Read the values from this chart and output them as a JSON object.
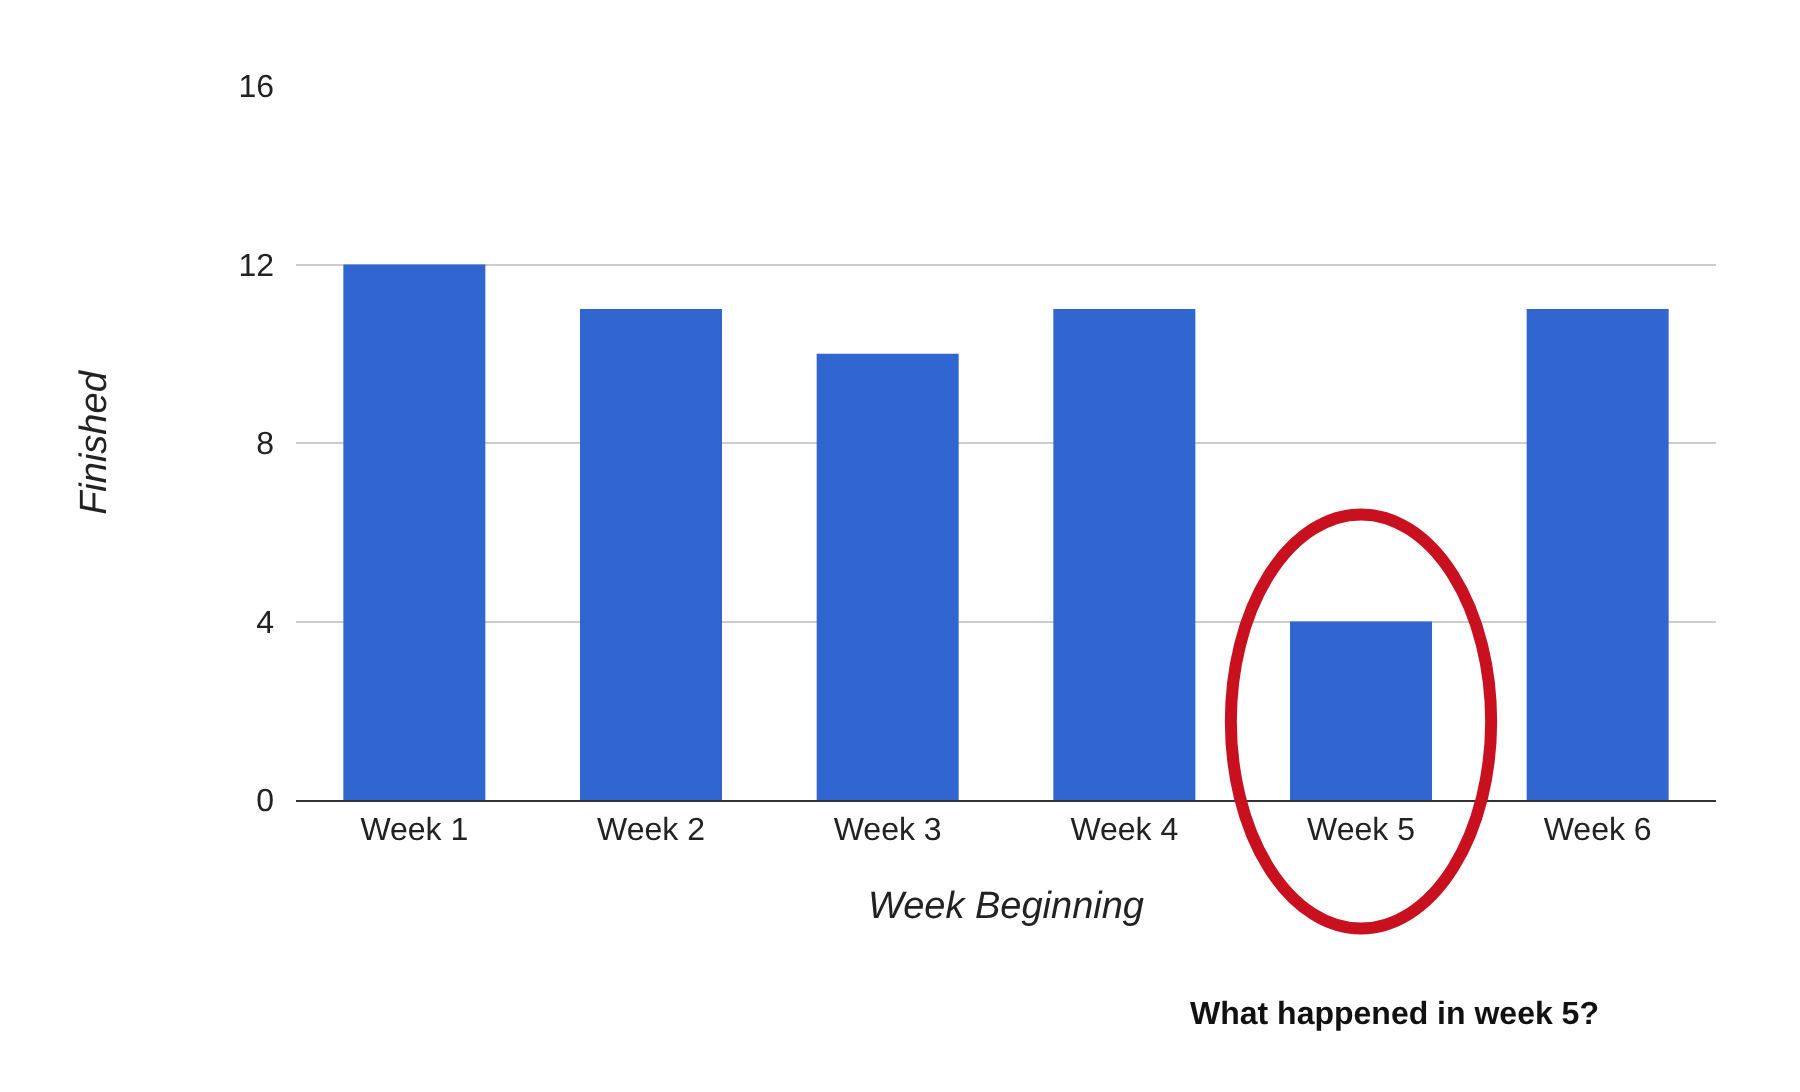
{
  "chart_data": {
    "type": "bar",
    "categories": [
      "Week 1",
      "Week 2",
      "Week 3",
      "Week 4",
      "Week 5",
      "Week 6"
    ],
    "values": [
      12,
      11,
      10,
      11,
      4,
      11
    ],
    "color": "#3166d1",
    "xlabel": "Week Beginning",
    "ylabel": "Finished",
    "ylim": [
      0,
      16
    ],
    "yticks": [
      0,
      4,
      8,
      12,
      16
    ],
    "grid": "y",
    "legend": false,
    "annotations": [
      "What happened in week 5?"
    ]
  }
}
